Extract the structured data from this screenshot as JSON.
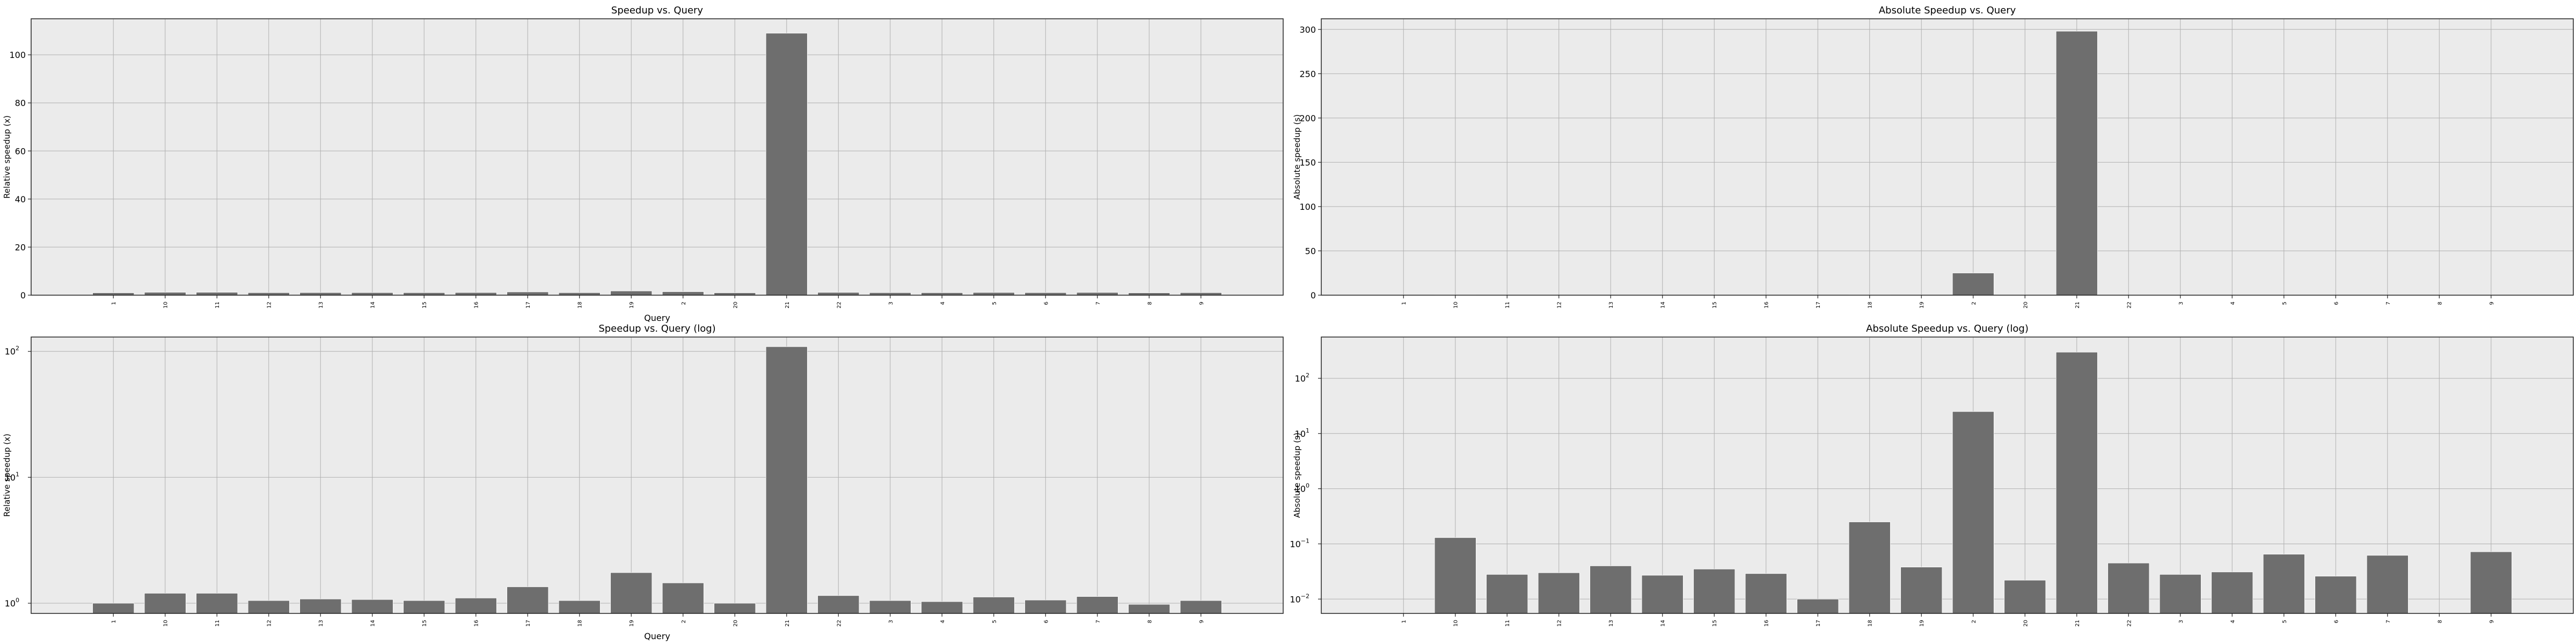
{
  "chart_data": [
    {
      "type": "bar",
      "title": "Speedup vs. Query",
      "xlabel": "Query",
      "ylabel": "Relative speedup (x)",
      "scale": "linear",
      "ylim": [
        0,
        115
      ],
      "yticks": [
        0,
        20,
        40,
        60,
        80,
        100
      ],
      "grid": true,
      "categories": [
        "1",
        "10",
        "11",
        "12",
        "13",
        "14",
        "15",
        "16",
        "17",
        "18",
        "19",
        "2",
        "20",
        "21",
        "22",
        "3",
        "4",
        "5",
        "6",
        "7",
        "8",
        "9"
      ],
      "values": [
        1.0,
        1.2,
        1.2,
        1.05,
        1.08,
        1.07,
        1.05,
        1.1,
        1.35,
        1.05,
        1.75,
        1.45,
        1.0,
        109,
        1.15,
        1.05,
        1.03,
        1.12,
        1.06,
        1.13,
        0.98,
        1.05
      ],
      "bar_color": "#6e6e6e"
    },
    {
      "type": "bar",
      "title": "Absolute Speedup vs. Query",
      "xlabel": "",
      "ylabel": "Absolute speedup (s)",
      "scale": "linear",
      "ylim": [
        0,
        312
      ],
      "yticks": [
        0,
        50,
        100,
        150,
        200,
        250,
        300
      ],
      "grid": true,
      "categories": [
        "1",
        "10",
        "11",
        "12",
        "13",
        "14",
        "15",
        "16",
        "17",
        "18",
        "19",
        "2",
        "20",
        "21",
        "22",
        "3",
        "4",
        "5",
        "6",
        "7",
        "8",
        "9"
      ],
      "values": [
        0,
        0.13,
        0.028,
        0.03,
        0.04,
        0.027,
        0.035,
        0.029,
        0.01,
        0.25,
        0.038,
        25,
        0.022,
        298,
        0.045,
        0.028,
        0.031,
        0.065,
        0.026,
        0.062,
        0,
        0.072
      ],
      "bar_color": "#6e6e6e"
    },
    {
      "type": "bar",
      "title": "Speedup vs. Query (log)",
      "xlabel": "Query",
      "ylabel": "Relative speedup (x)",
      "scale": "log",
      "ylim": [
        0.83,
        130
      ],
      "yticks": [
        1,
        10,
        100
      ],
      "ytick_labels": [
        {
          "base": "10",
          "exp": "0"
        },
        {
          "base": "10",
          "exp": "1"
        },
        {
          "base": "10",
          "exp": "2"
        }
      ],
      "grid": true,
      "categories": [
        "1",
        "10",
        "11",
        "12",
        "13",
        "14",
        "15",
        "16",
        "17",
        "18",
        "19",
        "2",
        "20",
        "21",
        "22",
        "3",
        "4",
        "5",
        "6",
        "7",
        "8",
        "9"
      ],
      "values": [
        1.0,
        1.2,
        1.2,
        1.05,
        1.08,
        1.07,
        1.05,
        1.1,
        1.35,
        1.05,
        1.75,
        1.45,
        1.0,
        109,
        1.15,
        1.05,
        1.03,
        1.12,
        1.06,
        1.13,
        0.98,
        1.05
      ],
      "bar_color": "#6e6e6e"
    },
    {
      "type": "bar",
      "title": "Absolute Speedup vs. Query (log)",
      "xlabel": "",
      "ylabel": "Absolute speedup (s)",
      "scale": "log",
      "ylim": [
        0.0055,
        560
      ],
      "yticks": [
        0.01,
        0.1,
        1,
        10,
        100
      ],
      "ytick_labels": [
        {
          "base": "10",
          "exp": "−2"
        },
        {
          "base": "10",
          "exp": "−1"
        },
        {
          "base": "10",
          "exp": "0"
        },
        {
          "base": "10",
          "exp": "1"
        },
        {
          "base": "10",
          "exp": "2"
        }
      ],
      "grid": true,
      "categories": [
        "1",
        "10",
        "11",
        "12",
        "13",
        "14",
        "15",
        "16",
        "17",
        "18",
        "19",
        "2",
        "20",
        "21",
        "22",
        "3",
        "4",
        "5",
        "6",
        "7",
        "8",
        "9"
      ],
      "values": [
        0,
        0.13,
        0.028,
        0.03,
        0.04,
        0.027,
        0.035,
        0.029,
        0.01,
        0.25,
        0.038,
        25,
        0.022,
        298,
        0.045,
        0.028,
        0.031,
        0.065,
        0.026,
        0.062,
        0,
        0.072
      ],
      "bar_color": "#6e6e6e"
    }
  ]
}
